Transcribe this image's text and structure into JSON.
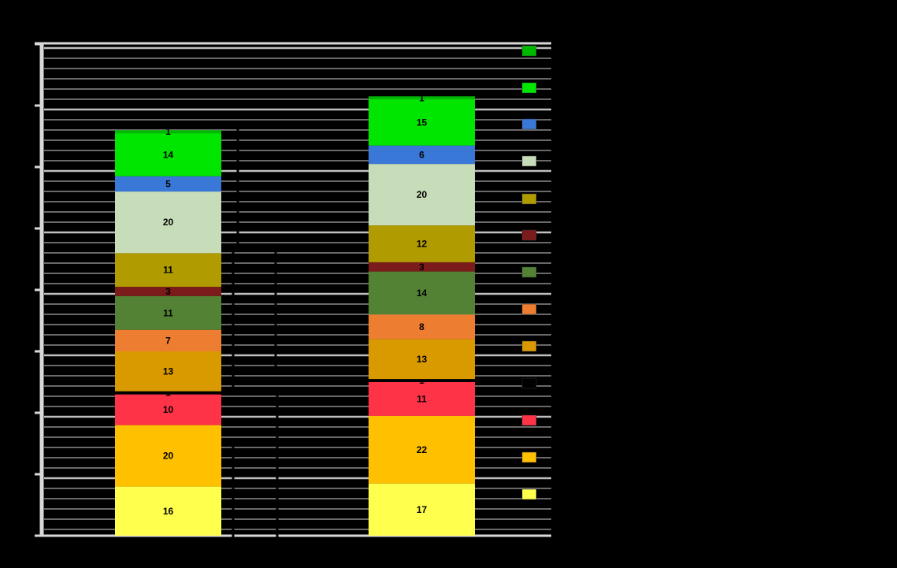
{
  "chart_data": {
    "type": "bar",
    "stacked": true,
    "orientation": "vertical",
    "categories": [
      "",
      ""
    ],
    "bar_totals": [
      "",
      ""
    ],
    "annotations": [],
    "series": [
      {
        "color": "#ffff4d",
        "values": [
          16,
          17
        ]
      },
      {
        "color": "#ffc000",
        "values": [
          20,
          22
        ]
      },
      {
        "color": "#ff3348",
        "values": [
          10,
          11
        ]
      },
      {
        "color": "#000000",
        "values": [
          1,
          1
        ]
      },
      {
        "color": "#d99a00",
        "values": [
          13,
          13
        ]
      },
      {
        "color": "#ed7d31",
        "values": [
          7,
          8
        ]
      },
      {
        "color": "#548235",
        "values": [
          11,
          14
        ]
      },
      {
        "color": "#7b1b1b",
        "values": [
          3,
          3
        ]
      },
      {
        "color": "#b09b00",
        "values": [
          11,
          12
        ]
      },
      {
        "color": "#c7dcb8",
        "values": [
          20,
          20
        ]
      },
      {
        "color": "#3a78d8",
        "values": [
          5,
          6
        ]
      },
      {
        "color": "#00e600",
        "values": [
          14,
          15
        ]
      },
      {
        "color": "#00b800",
        "values": [
          1,
          1
        ]
      }
    ],
    "legend": {
      "position": "right"
    },
    "grid": true
  }
}
